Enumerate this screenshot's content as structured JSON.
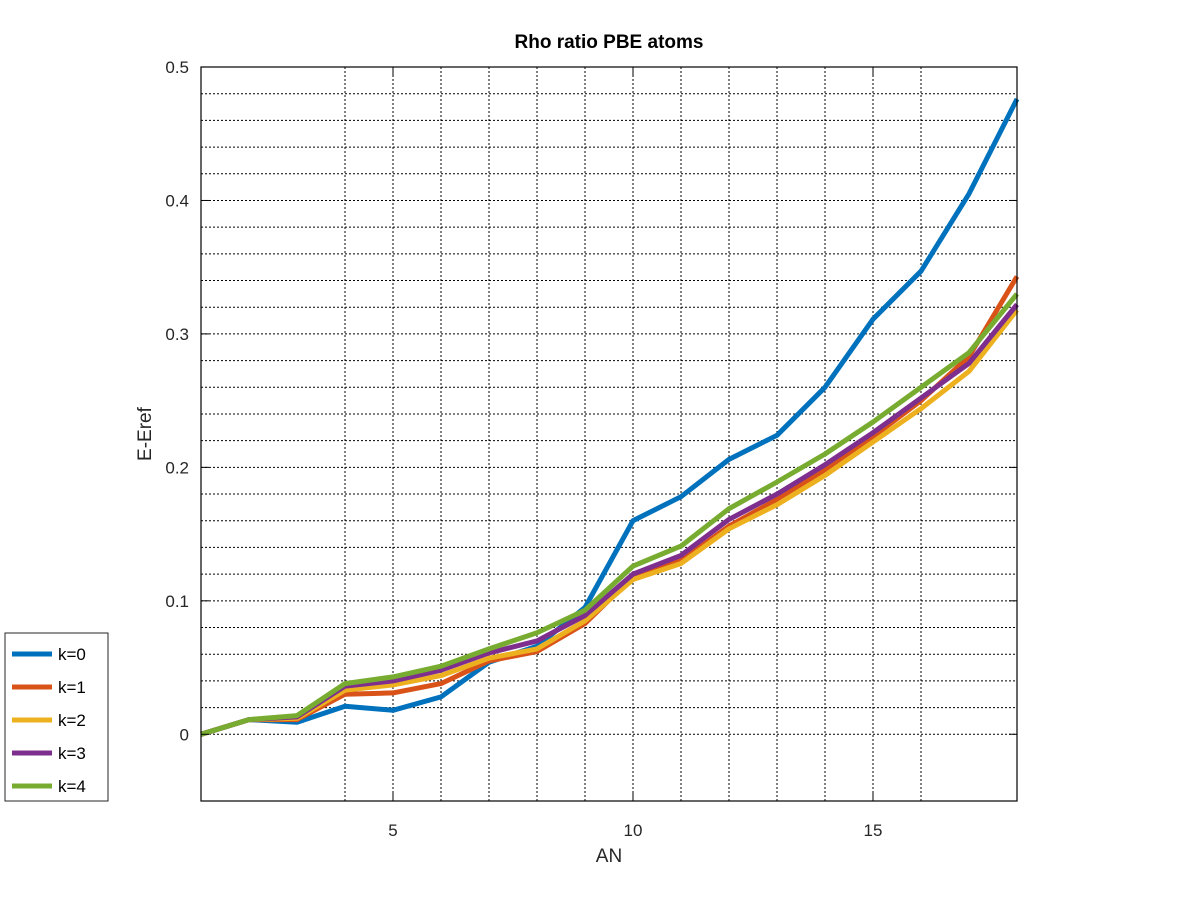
{
  "chart_data": {
    "type": "line",
    "title": "Rho ratio PBE atoms",
    "xlabel": "AN",
    "ylabel": "E-Eref",
    "xlim": [
      1,
      18
    ],
    "ylim": [
      -0.05,
      0.5
    ],
    "xticks": [
      5,
      10,
      15
    ],
    "xtick_labels": [
      "5",
      "10",
      "15"
    ],
    "yticks": [
      0,
      0.1,
      0.2,
      0.3,
      0.4,
      0.5
    ],
    "ytick_labels": [
      "0",
      "0.1",
      "0.2",
      "0.3",
      "0.4",
      "0.5"
    ],
    "x_minor_grid": [
      4,
      5,
      6,
      7,
      8,
      9,
      10,
      11,
      12,
      13,
      14,
      15,
      16
    ],
    "y_minor_grid": [
      0,
      0.02,
      0.04,
      0.06,
      0.08,
      0.1,
      0.12,
      0.14,
      0.16,
      0.18,
      0.2,
      0.22,
      0.24,
      0.26,
      0.28,
      0.3,
      0.32,
      0.34,
      0.36,
      0.38,
      0.4,
      0.42,
      0.44,
      0.46,
      0.48
    ],
    "grid": "on",
    "legend_position": "bottom-left, outside",
    "x": [
      1,
      2,
      3,
      4,
      5,
      6,
      7,
      8,
      9,
      10,
      11,
      12,
      13,
      14,
      15,
      16,
      17,
      18
    ],
    "series": [
      {
        "name": "k=0",
        "color": "#0072BD",
        "values": [
          0,
          0.011,
          0.009,
          0.021,
          0.018,
          0.028,
          0.054,
          0.066,
          0.095,
          0.16,
          0.178,
          0.206,
          0.224,
          0.26,
          0.311,
          0.347,
          0.405,
          0.476
        ]
      },
      {
        "name": "k=1",
        "color": "#D95319",
        "values": [
          0,
          0.011,
          0.011,
          0.03,
          0.031,
          0.038,
          0.055,
          0.062,
          0.083,
          0.118,
          0.13,
          0.156,
          0.176,
          0.198,
          0.223,
          0.25,
          0.283,
          0.343
        ]
      },
      {
        "name": "k=2",
        "color": "#EDB120",
        "values": [
          0,
          0.011,
          0.012,
          0.033,
          0.037,
          0.044,
          0.057,
          0.064,
          0.085,
          0.116,
          0.128,
          0.154,
          0.172,
          0.194,
          0.219,
          0.244,
          0.272,
          0.318
        ]
      },
      {
        "name": "k=3",
        "color": "#7E2F8E",
        "values": [
          0,
          0.011,
          0.013,
          0.036,
          0.04,
          0.048,
          0.061,
          0.07,
          0.089,
          0.12,
          0.134,
          0.161,
          0.18,
          0.202,
          0.226,
          0.252,
          0.278,
          0.322
        ]
      },
      {
        "name": "k=4",
        "color": "#77AC30",
        "values": [
          0,
          0.011,
          0.014,
          0.038,
          0.043,
          0.051,
          0.064,
          0.076,
          0.093,
          0.126,
          0.141,
          0.169,
          0.189,
          0.21,
          0.234,
          0.26,
          0.286,
          0.33
        ]
      }
    ]
  }
}
